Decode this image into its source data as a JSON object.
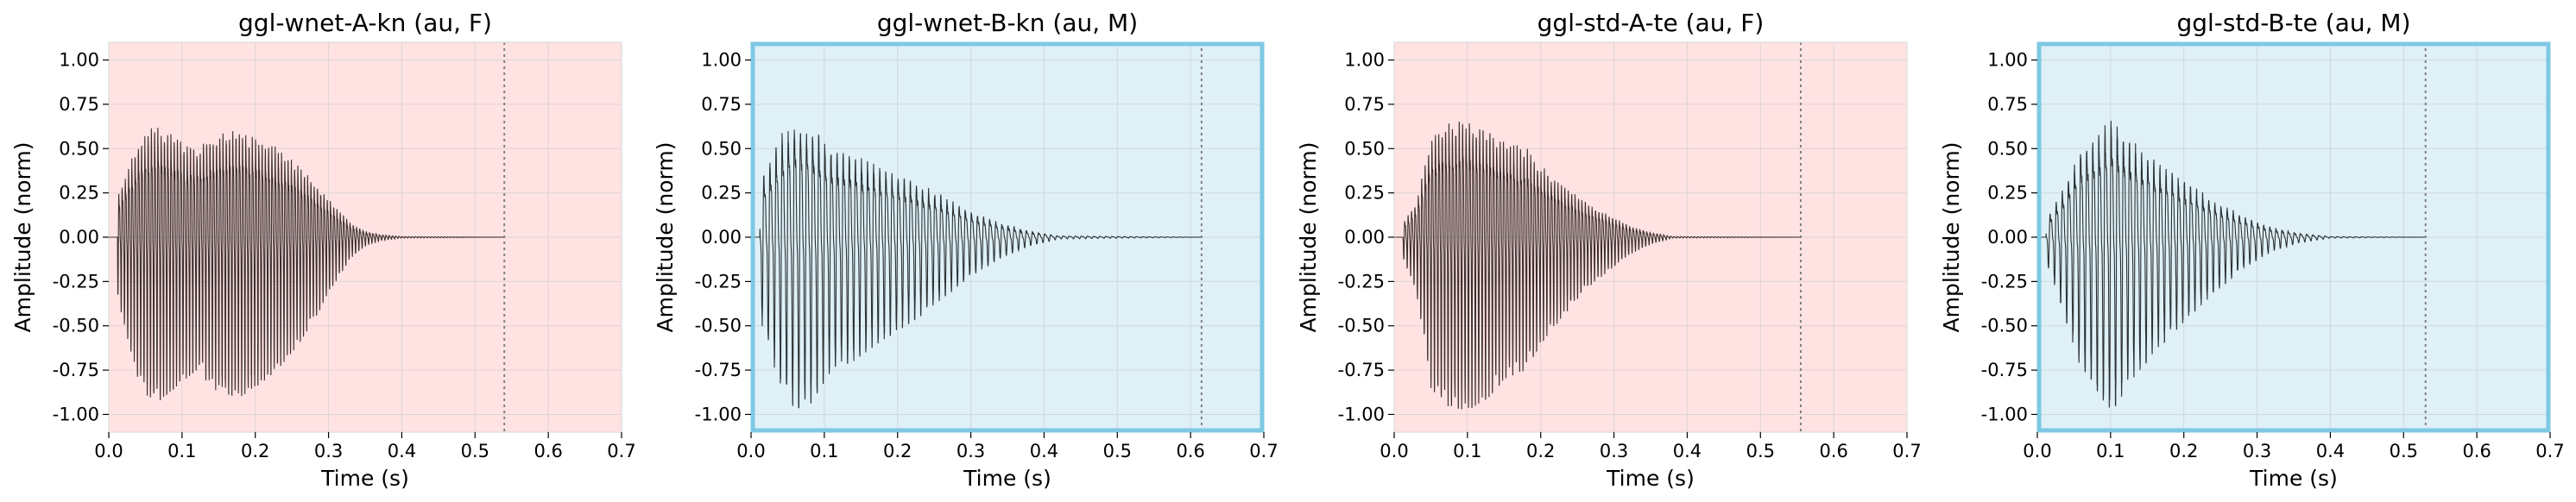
{
  "colors": {
    "pink_bg": "#ffe3e3",
    "blue_bg": "#dff0f7",
    "highlight_border": "#7ec8e3",
    "wave_pink": "#3a2e2e",
    "wave_blue": "#2b3133",
    "grid": "#c8c8c8",
    "dotted_marker": "#808080"
  },
  "chart_data": [
    {
      "type": "line",
      "title": "ggl-wnet-A-kn (au, F)",
      "xlabel": "Time (s)",
      "ylabel": "Amplitude (norm)",
      "xlim": [
        0.0,
        0.7
      ],
      "ylim": [
        -1.1,
        1.1
      ],
      "xticks": [
        "0.0",
        "0.1",
        "0.2",
        "0.3",
        "0.4",
        "0.5",
        "0.6",
        "0.7"
      ],
      "yticks": [
        "1.00",
        "0.75",
        "0.50",
        "0.25",
        "0.00",
        "-0.25",
        "-0.50",
        "-0.75",
        "-1.00"
      ],
      "background": "pink",
      "highlighted": false,
      "signal_end_s": 0.54,
      "marker_s": 0.54,
      "peak_amplitude": 0.95,
      "peak_time_s": 0.06,
      "envelope": {
        "times": [
          0.0,
          0.015,
          0.04,
          0.06,
          0.09,
          0.12,
          0.15,
          0.18,
          0.2,
          0.23,
          0.26,
          0.29,
          0.31,
          0.33,
          0.35,
          0.37,
          0.4,
          0.54
        ],
        "amps": [
          0.0,
          0.4,
          0.8,
          0.95,
          0.85,
          0.75,
          0.88,
          0.9,
          0.85,
          0.75,
          0.6,
          0.4,
          0.25,
          0.12,
          0.05,
          0.02,
          0.005,
          0.0
        ]
      },
      "f0_hz": 225
    },
    {
      "type": "line",
      "title": "ggl-wnet-B-kn (au, M)",
      "xlabel": "Time (s)",
      "ylabel": "Amplitude (norm)",
      "xlim": [
        0.0,
        0.7
      ],
      "ylim": [
        -1.1,
        1.1
      ],
      "xticks": [
        "0.0",
        "0.1",
        "0.2",
        "0.3",
        "0.4",
        "0.5",
        "0.6",
        "0.7"
      ],
      "yticks": [
        "1.00",
        "0.75",
        "0.50",
        "0.25",
        "0.00",
        "-0.25",
        "-0.50",
        "-0.75",
        "-1.00"
      ],
      "background": "blue",
      "highlighted": true,
      "signal_end_s": 0.615,
      "marker_s": 0.615,
      "peak_amplitude": 0.97,
      "peak_time_s": 0.06,
      "envelope": {
        "times": [
          0.0,
          0.015,
          0.04,
          0.06,
          0.08,
          0.11,
          0.14,
          0.18,
          0.22,
          0.26,
          0.3,
          0.34,
          0.38,
          0.42,
          0.615
        ],
        "amps": [
          0.0,
          0.5,
          0.85,
          0.97,
          0.95,
          0.75,
          0.7,
          0.58,
          0.48,
          0.35,
          0.22,
          0.12,
          0.05,
          0.01,
          0.0
        ]
      },
      "f0_hz": 120
    },
    {
      "type": "line",
      "title": "ggl-std-A-te (au, F)",
      "xlabel": "Time (s)",
      "ylabel": "Amplitude (norm)",
      "xlim": [
        0.0,
        0.7
      ],
      "ylim": [
        -1.1,
        1.1
      ],
      "xticks": [
        "0.0",
        "0.1",
        "0.2",
        "0.3",
        "0.4",
        "0.5",
        "0.6",
        "0.7"
      ],
      "yticks": [
        "1.00",
        "0.75",
        "0.50",
        "0.25",
        "0.00",
        "-0.25",
        "-0.50",
        "-0.75",
        "-1.00"
      ],
      "background": "pink",
      "highlighted": false,
      "signal_end_s": 0.555,
      "marker_s": 0.555,
      "peak_amplitude": 0.98,
      "peak_time_s": 0.1,
      "envelope": {
        "times": [
          0.0,
          0.03,
          0.05,
          0.07,
          0.1,
          0.13,
          0.15,
          0.18,
          0.2,
          0.23,
          0.26,
          0.29,
          0.32,
          0.35,
          0.38,
          0.555
        ],
        "amps": [
          0.0,
          0.3,
          0.85,
          0.95,
          0.98,
          0.9,
          0.8,
          0.75,
          0.6,
          0.45,
          0.3,
          0.2,
          0.1,
          0.04,
          0.005,
          0.0
        ]
      },
      "f0_hz": 215
    },
    {
      "type": "line",
      "title": "ggl-std-B-te (au, M)",
      "xlabel": "Time (s)",
      "ylabel": "Amplitude (norm)",
      "xlim": [
        0.0,
        0.7
      ],
      "ylim": [
        -1.1,
        1.1
      ],
      "xticks": [
        "0.0",
        "0.1",
        "0.2",
        "0.3",
        "0.4",
        "0.5",
        "0.6",
        "0.7"
      ],
      "yticks": [
        "1.00",
        "0.75",
        "0.50",
        "0.25",
        "0.00",
        "-0.25",
        "-0.50",
        "-0.75",
        "-1.00"
      ],
      "background": "blue",
      "highlighted": true,
      "signal_end_s": 0.53,
      "marker_s": 0.53,
      "peak_amplitude": 1.0,
      "peak_time_s": 0.1,
      "envelope": {
        "times": [
          0.0,
          0.03,
          0.06,
          0.08,
          0.1,
          0.13,
          0.16,
          0.2,
          0.24,
          0.28,
          0.32,
          0.36,
          0.4,
          0.53
        ],
        "amps": [
          0.0,
          0.35,
          0.75,
          0.85,
          1.0,
          0.8,
          0.65,
          0.48,
          0.32,
          0.18,
          0.08,
          0.03,
          0.005,
          0.0
        ]
      },
      "f0_hz": 120
    }
  ]
}
